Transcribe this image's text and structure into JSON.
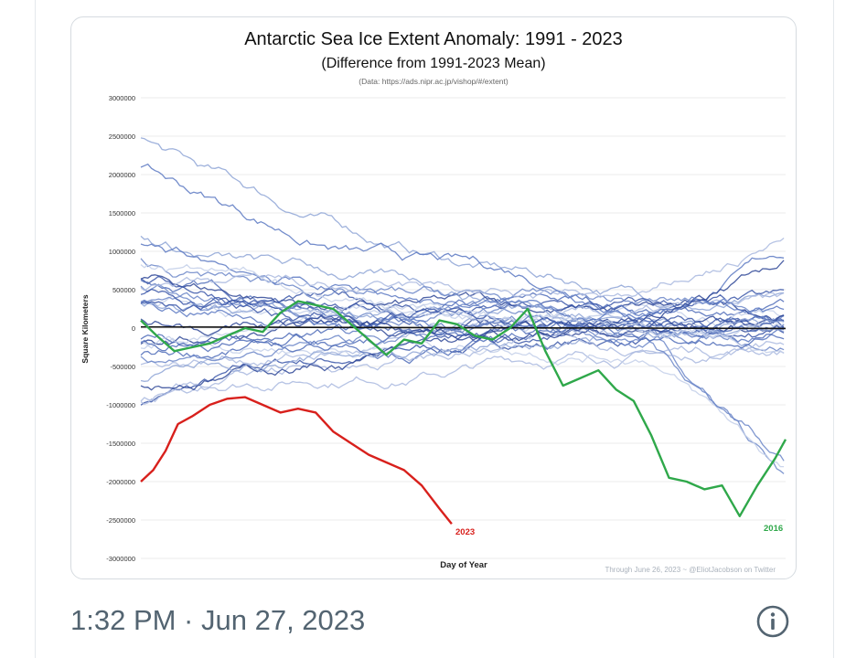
{
  "tweet": {
    "timestamp": "1:32 PM · Jun 27, 2023",
    "info_icon": "info-icon"
  },
  "chart_data": {
    "type": "line",
    "title": "Antarctic Sea Ice Extent Anomaly: 1991 - 2023",
    "subtitle": "(Difference from 1991-2023 Mean)",
    "source": "(Data: https://ads.nipr.ac.jp/vishop/#/extent)",
    "xlabel": "Day of Year",
    "ylabel": "Square Kilometers",
    "credit": "Through June 26, 2023 ~ @EliotJacobson on Twitter",
    "ylim": [
      -3000000,
      3000000
    ],
    "xlim": [
      1,
      366
    ],
    "yticks": [
      "3000000",
      "2500000",
      "2000000",
      "1500000",
      "1000000",
      "500000",
      "0",
      "-500000",
      "-1000000",
      "-1500000",
      "-2000000",
      "-2500000",
      "-3000000"
    ],
    "grid": true,
    "colors": {
      "background_series": "#4f6cb8",
      "2023": "#d8201c",
      "2016": "#2fa84a",
      "zero_line": "#111111"
    },
    "highlight_series": [
      {
        "name": "2023",
        "x": [
          1,
          8,
          15,
          22,
          30,
          40,
          50,
          60,
          70,
          80,
          90,
          100,
          110,
          120,
          130,
          140,
          150,
          160,
          170,
          177
        ],
        "values": [
          -2000000,
          -1850000,
          -1600000,
          -1250000,
          -1150000,
          -1000000,
          -920000,
          -900000,
          -1000000,
          -1100000,
          -1050000,
          -1100000,
          -1350000,
          -1500000,
          -1650000,
          -1750000,
          -1850000,
          -2050000,
          -2350000,
          -2550000
        ]
      },
      {
        "name": "2016",
        "x": [
          1,
          10,
          20,
          30,
          40,
          50,
          60,
          70,
          80,
          90,
          100,
          110,
          120,
          130,
          140,
          150,
          160,
          170,
          180,
          190,
          200,
          210,
          220,
          230,
          240,
          250,
          260,
          270,
          280,
          290,
          300,
          310,
          320,
          330,
          340,
          350,
          360,
          366
        ],
        "values": [
          100000,
          -100000,
          -300000,
          -250000,
          -200000,
          -100000,
          0,
          -50000,
          200000,
          350000,
          300000,
          250000,
          50000,
          -150000,
          -350000,
          -150000,
          -200000,
          100000,
          50000,
          -100000,
          -150000,
          0,
          250000,
          -300000,
          -750000,
          -650000,
          -550000,
          -800000,
          -950000,
          -1400000,
          -1950000,
          -2000000,
          -2100000,
          -2050000,
          -2450000,
          -2050000,
          -1700000,
          -1450000
        ]
      }
    ]
  }
}
